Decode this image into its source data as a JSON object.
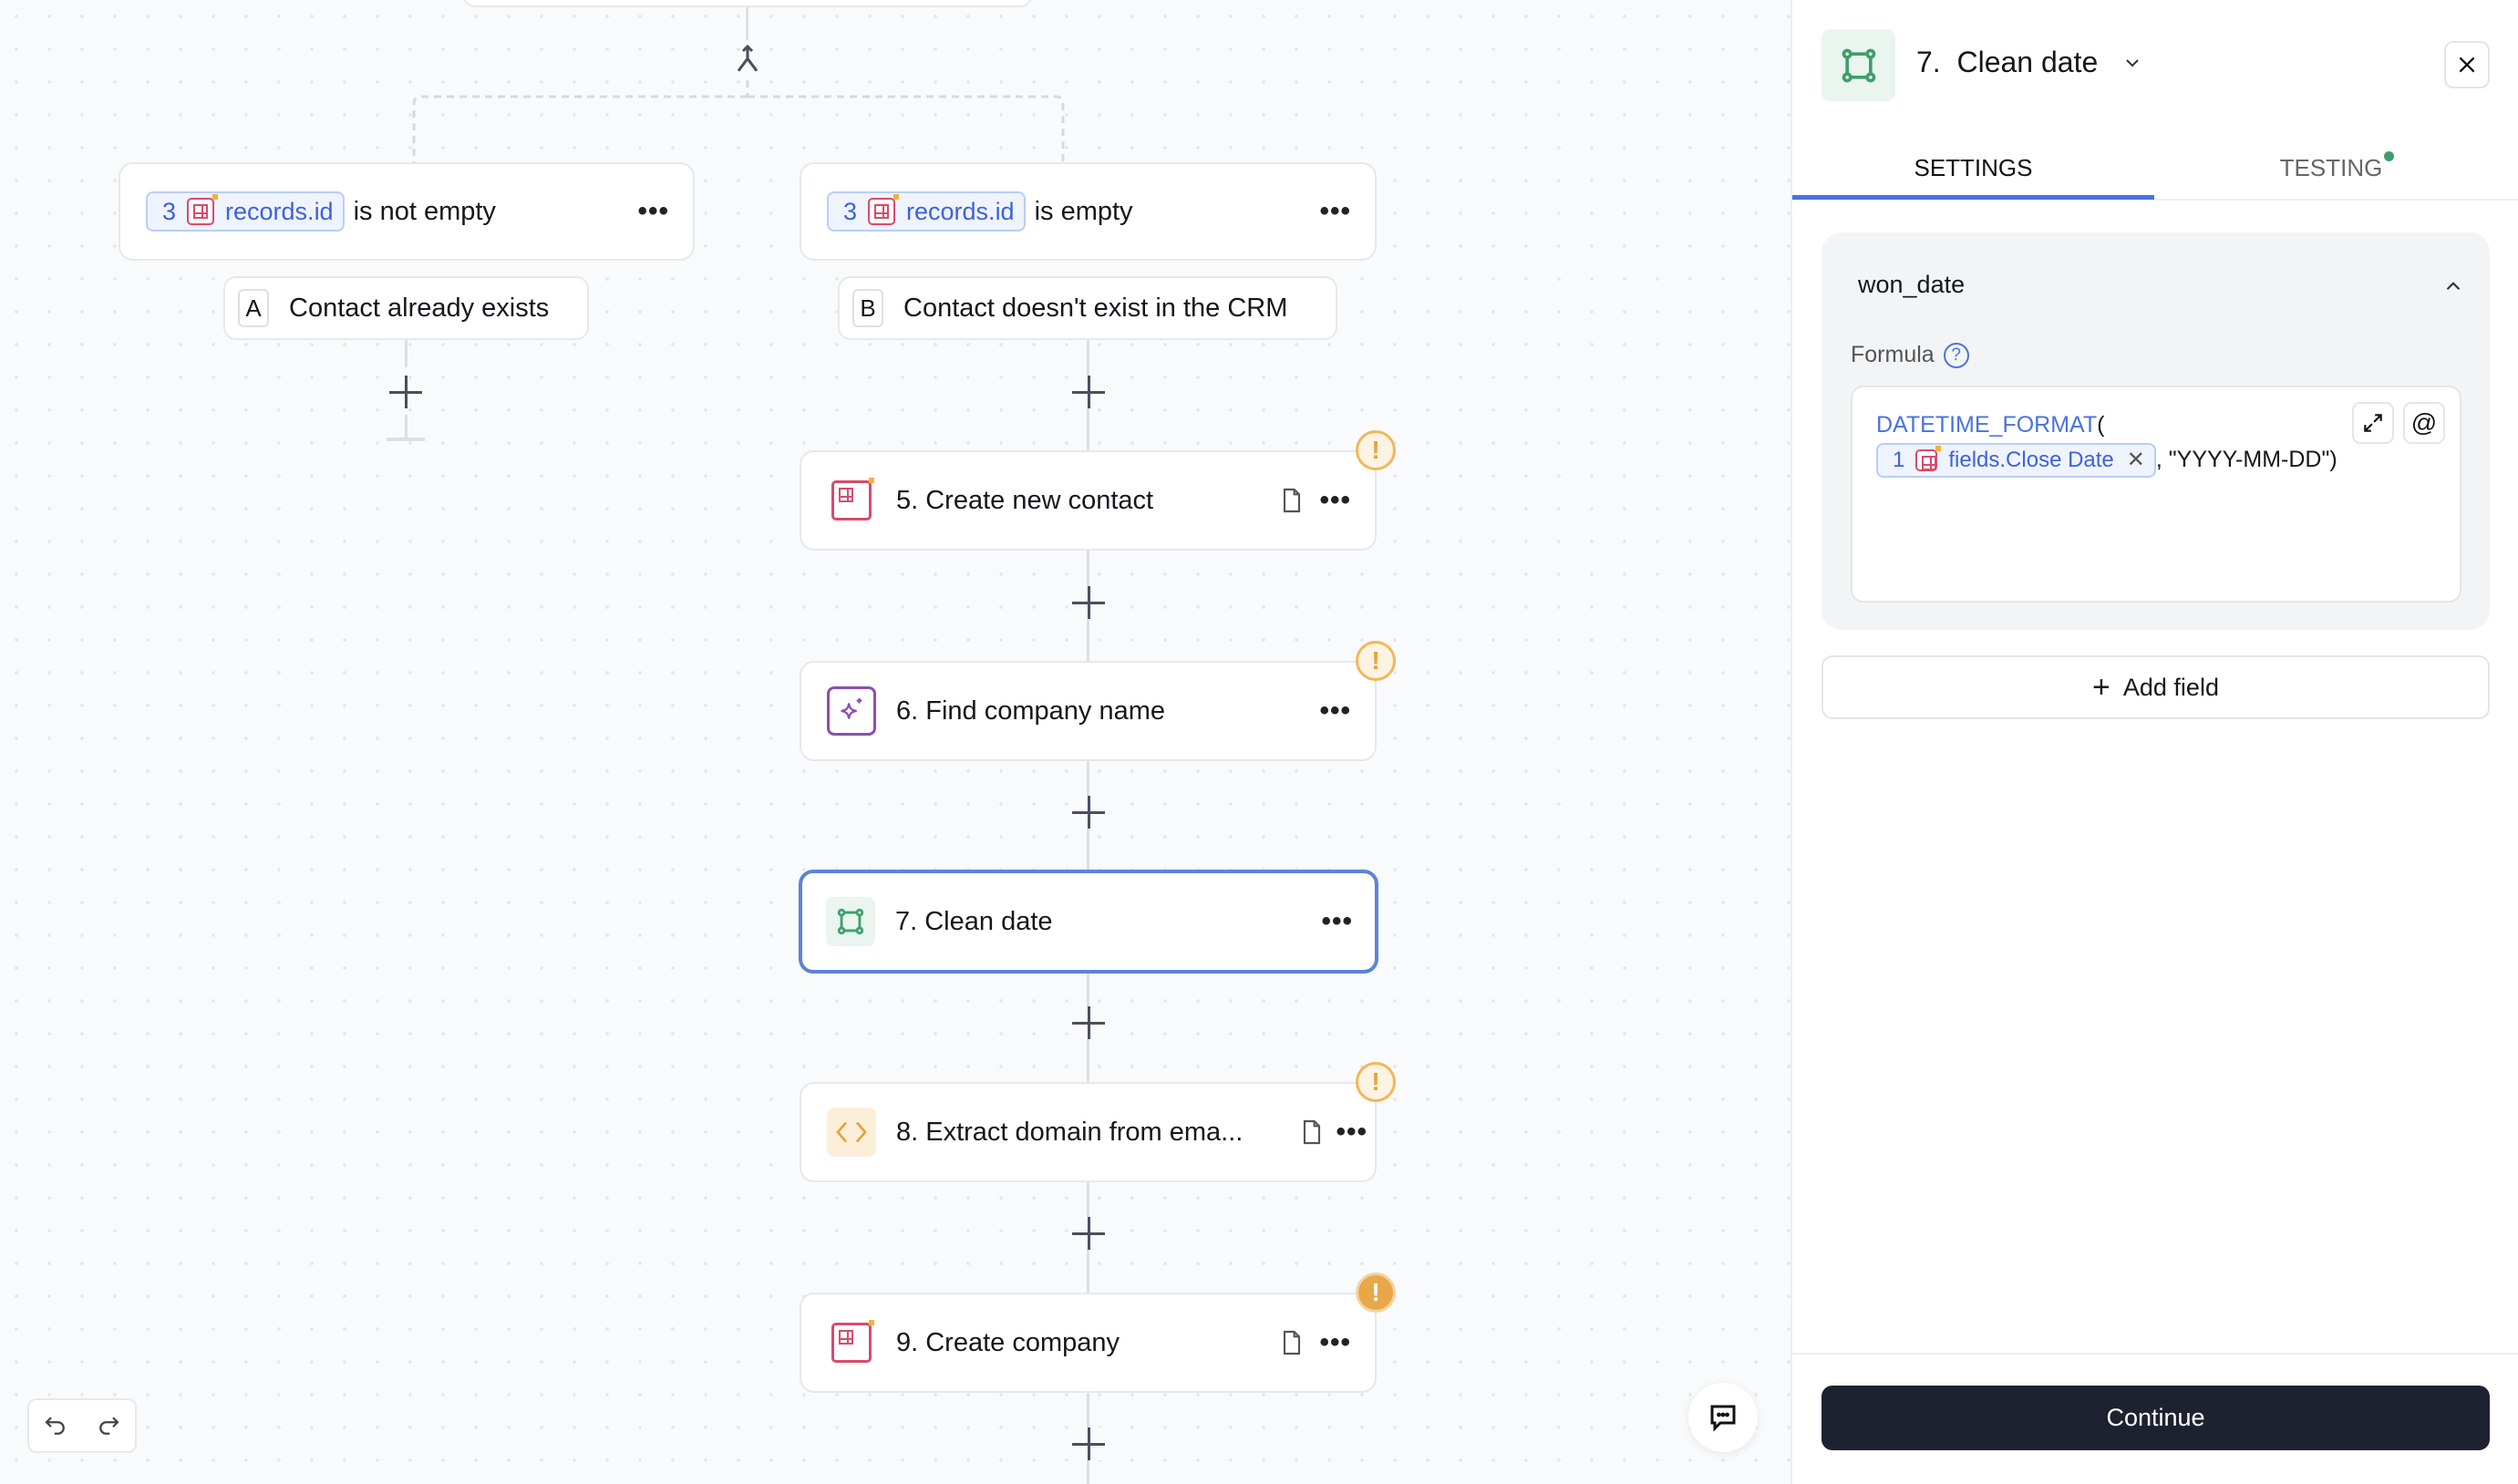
{
  "canvas": {
    "conditions": [
      {
        "ref_num": "3",
        "ref_field": "records.id",
        "operator": "is not empty",
        "branch_letter": "A",
        "branch_label": "Contact already exists"
      },
      {
        "ref_num": "3",
        "ref_field": "records.id",
        "operator": "is empty",
        "branch_letter": "B",
        "branch_label": "Contact doesn't exist in the CRM"
      }
    ],
    "steps": [
      {
        "title": "5. Create new contact",
        "icon": "table-icon",
        "warning": true,
        "has_note": true
      },
      {
        "title": "6. Find company name",
        "icon": "sparkle-ai-icon",
        "warning": true,
        "has_note": false
      },
      {
        "title": "7. Clean date",
        "icon": "formatter-icon",
        "warning": false,
        "has_note": false,
        "selected": true
      },
      {
        "title": "8. Extract domain from ema...",
        "icon": "code-icon",
        "warning": true,
        "has_note": true
      },
      {
        "title": "9. Create company",
        "icon": "table-icon",
        "warning": true,
        "has_note": true
      }
    ],
    "more_label": "•••"
  },
  "panel": {
    "title": "7.  Clean date",
    "tabs": [
      {
        "label": "SETTINGS",
        "active": true
      },
      {
        "label": "TESTING",
        "active": false,
        "status_dot": "#3f9e6e"
      }
    ],
    "field": {
      "name": "won_date",
      "formula_label": "Formula",
      "formula_fn": "DATETIME_FORMAT",
      "formula_open": "(",
      "chip_num": "1",
      "chip_field": "fields.Close Date",
      "formula_rest": ", \"YYYY-MM-DD\")"
    },
    "add_field_label": "Add field",
    "continue_label": "Continue"
  },
  "colors": {
    "accent": "#4a72e0",
    "selected_border": "#5b84d4",
    "warning": "#e8a84a",
    "continue_bg": "#1e2230"
  }
}
